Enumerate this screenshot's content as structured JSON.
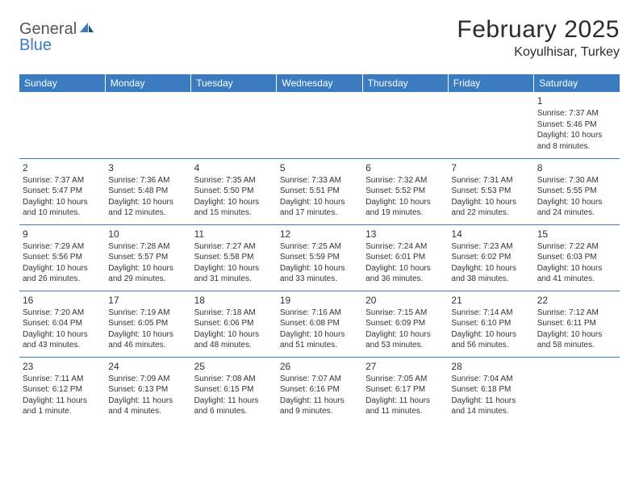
{
  "logo": {
    "general": "General",
    "blue": "Blue"
  },
  "title": "February 2025",
  "location": "Koyulhisar, Turkey",
  "colors": {
    "header_bg": "#3b7bbf",
    "header_text": "#ffffff",
    "row_border": "#3b7bbf",
    "text": "#333333",
    "page_bg": "#ffffff"
  },
  "typography": {
    "title_fontsize": 30,
    "location_fontsize": 16,
    "dayheader_fontsize": 12,
    "daynum_fontsize": 12,
    "cell_fontsize": 10,
    "font_family": "Arial"
  },
  "weekdays": [
    "Sunday",
    "Monday",
    "Tuesday",
    "Wednesday",
    "Thursday",
    "Friday",
    "Saturday"
  ],
  "weeks": [
    [
      null,
      null,
      null,
      null,
      null,
      null,
      {
        "n": "1",
        "sr": "Sunrise: 7:37 AM",
        "ss": "Sunset: 5:46 PM",
        "dl": "Daylight: 10 hours and 8 minutes."
      }
    ],
    [
      {
        "n": "2",
        "sr": "Sunrise: 7:37 AM",
        "ss": "Sunset: 5:47 PM",
        "dl": "Daylight: 10 hours and 10 minutes."
      },
      {
        "n": "3",
        "sr": "Sunrise: 7:36 AM",
        "ss": "Sunset: 5:48 PM",
        "dl": "Daylight: 10 hours and 12 minutes."
      },
      {
        "n": "4",
        "sr": "Sunrise: 7:35 AM",
        "ss": "Sunset: 5:50 PM",
        "dl": "Daylight: 10 hours and 15 minutes."
      },
      {
        "n": "5",
        "sr": "Sunrise: 7:33 AM",
        "ss": "Sunset: 5:51 PM",
        "dl": "Daylight: 10 hours and 17 minutes."
      },
      {
        "n": "6",
        "sr": "Sunrise: 7:32 AM",
        "ss": "Sunset: 5:52 PM",
        "dl": "Daylight: 10 hours and 19 minutes."
      },
      {
        "n": "7",
        "sr": "Sunrise: 7:31 AM",
        "ss": "Sunset: 5:53 PM",
        "dl": "Daylight: 10 hours and 22 minutes."
      },
      {
        "n": "8",
        "sr": "Sunrise: 7:30 AM",
        "ss": "Sunset: 5:55 PM",
        "dl": "Daylight: 10 hours and 24 minutes."
      }
    ],
    [
      {
        "n": "9",
        "sr": "Sunrise: 7:29 AM",
        "ss": "Sunset: 5:56 PM",
        "dl": "Daylight: 10 hours and 26 minutes."
      },
      {
        "n": "10",
        "sr": "Sunrise: 7:28 AM",
        "ss": "Sunset: 5:57 PM",
        "dl": "Daylight: 10 hours and 29 minutes."
      },
      {
        "n": "11",
        "sr": "Sunrise: 7:27 AM",
        "ss": "Sunset: 5:58 PM",
        "dl": "Daylight: 10 hours and 31 minutes."
      },
      {
        "n": "12",
        "sr": "Sunrise: 7:25 AM",
        "ss": "Sunset: 5:59 PM",
        "dl": "Daylight: 10 hours and 33 minutes."
      },
      {
        "n": "13",
        "sr": "Sunrise: 7:24 AM",
        "ss": "Sunset: 6:01 PM",
        "dl": "Daylight: 10 hours and 36 minutes."
      },
      {
        "n": "14",
        "sr": "Sunrise: 7:23 AM",
        "ss": "Sunset: 6:02 PM",
        "dl": "Daylight: 10 hours and 38 minutes."
      },
      {
        "n": "15",
        "sr": "Sunrise: 7:22 AM",
        "ss": "Sunset: 6:03 PM",
        "dl": "Daylight: 10 hours and 41 minutes."
      }
    ],
    [
      {
        "n": "16",
        "sr": "Sunrise: 7:20 AM",
        "ss": "Sunset: 6:04 PM",
        "dl": "Daylight: 10 hours and 43 minutes."
      },
      {
        "n": "17",
        "sr": "Sunrise: 7:19 AM",
        "ss": "Sunset: 6:05 PM",
        "dl": "Daylight: 10 hours and 46 minutes."
      },
      {
        "n": "18",
        "sr": "Sunrise: 7:18 AM",
        "ss": "Sunset: 6:06 PM",
        "dl": "Daylight: 10 hours and 48 minutes."
      },
      {
        "n": "19",
        "sr": "Sunrise: 7:16 AM",
        "ss": "Sunset: 6:08 PM",
        "dl": "Daylight: 10 hours and 51 minutes."
      },
      {
        "n": "20",
        "sr": "Sunrise: 7:15 AM",
        "ss": "Sunset: 6:09 PM",
        "dl": "Daylight: 10 hours and 53 minutes."
      },
      {
        "n": "21",
        "sr": "Sunrise: 7:14 AM",
        "ss": "Sunset: 6:10 PM",
        "dl": "Daylight: 10 hours and 56 minutes."
      },
      {
        "n": "22",
        "sr": "Sunrise: 7:12 AM",
        "ss": "Sunset: 6:11 PM",
        "dl": "Daylight: 10 hours and 58 minutes."
      }
    ],
    [
      {
        "n": "23",
        "sr": "Sunrise: 7:11 AM",
        "ss": "Sunset: 6:12 PM",
        "dl": "Daylight: 11 hours and 1 minute."
      },
      {
        "n": "24",
        "sr": "Sunrise: 7:09 AM",
        "ss": "Sunset: 6:13 PM",
        "dl": "Daylight: 11 hours and 4 minutes."
      },
      {
        "n": "25",
        "sr": "Sunrise: 7:08 AM",
        "ss": "Sunset: 6:15 PM",
        "dl": "Daylight: 11 hours and 6 minutes."
      },
      {
        "n": "26",
        "sr": "Sunrise: 7:07 AM",
        "ss": "Sunset: 6:16 PM",
        "dl": "Daylight: 11 hours and 9 minutes."
      },
      {
        "n": "27",
        "sr": "Sunrise: 7:05 AM",
        "ss": "Sunset: 6:17 PM",
        "dl": "Daylight: 11 hours and 11 minutes."
      },
      {
        "n": "28",
        "sr": "Sunrise: 7:04 AM",
        "ss": "Sunset: 6:18 PM",
        "dl": "Daylight: 11 hours and 14 minutes."
      },
      null
    ]
  ]
}
